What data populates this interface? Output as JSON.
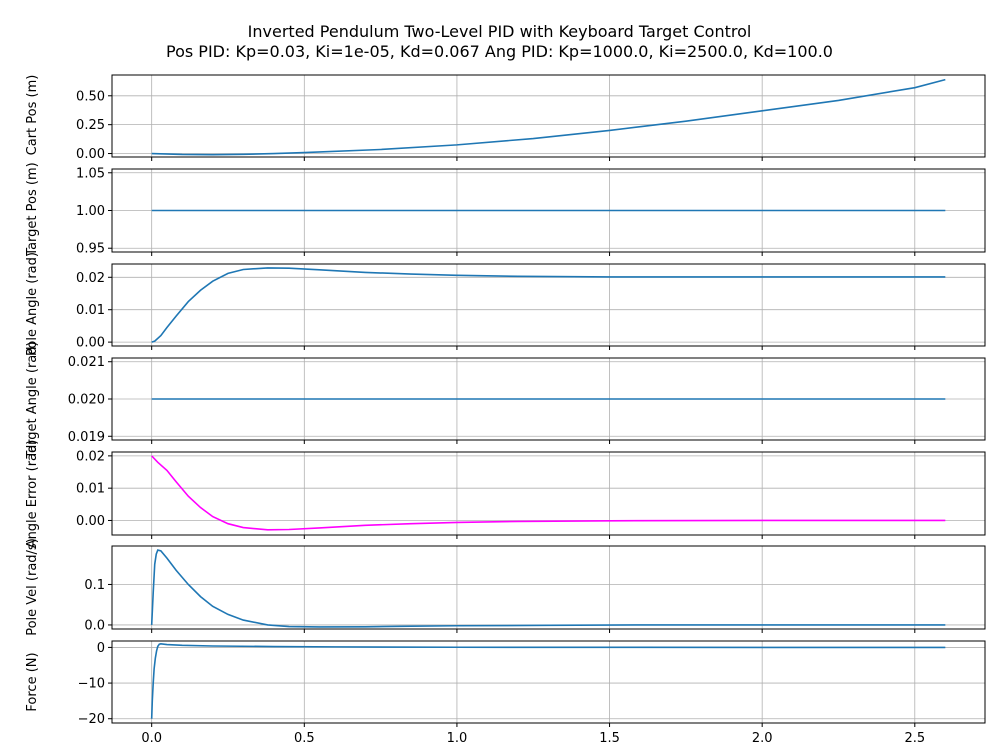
{
  "figure": {
    "title_line1": "Inverted Pendulum Two-Level PID with Keyboard Target Control",
    "title_line2": "Pos PID: Kp=0.03, Ki=1e-05, Kd=0.067     Ang PID: Kp=1000.0, Ki=2500.0, Kd=100.0"
  },
  "chart_data": [
    {
      "type": "line",
      "ylabel": "Cart Pos (m)",
      "xlim": [
        -0.13,
        2.73
      ],
      "ylim": [
        -0.03,
        0.68
      ],
      "yticks": [
        0.0,
        0.25,
        0.5
      ],
      "ytick_labels": [
        "0.00",
        "0.25",
        "0.50"
      ],
      "grid": true,
      "color": "#1f77b4",
      "x": [
        0,
        0.1,
        0.2,
        0.3,
        0.4,
        0.5,
        0.75,
        1.0,
        1.25,
        1.5,
        1.75,
        2.0,
        2.25,
        2.5,
        2.6
      ],
      "y": [
        0,
        -0.008,
        -0.01,
        -0.007,
        0.0,
        0.008,
        0.035,
        0.075,
        0.13,
        0.2,
        0.28,
        0.37,
        0.46,
        0.57,
        0.64
      ]
    },
    {
      "type": "line",
      "ylabel": "Target Pos (m)",
      "xlim": [
        -0.13,
        2.73
      ],
      "ylim": [
        0.945,
        1.055
      ],
      "yticks": [
        0.95,
        1.0,
        1.05
      ],
      "ytick_labels": [
        "0.95",
        "1.00",
        "1.05"
      ],
      "grid": true,
      "color": "#1f77b4",
      "x": [
        0,
        2.6
      ],
      "y": [
        1.0,
        1.0
      ]
    },
    {
      "type": "line",
      "ylabel": "Pole Angle (rad)",
      "xlim": [
        -0.13,
        2.73
      ],
      "ylim": [
        -0.0012,
        0.0241
      ],
      "yticks": [
        0.0,
        0.01,
        0.02
      ],
      "ytick_labels": [
        "0.00",
        "0.01",
        "0.02"
      ],
      "grid": true,
      "color": "#1f77b4",
      "x": [
        0,
        0.01,
        0.03,
        0.05,
        0.08,
        0.12,
        0.16,
        0.2,
        0.25,
        0.3,
        0.38,
        0.45,
        0.55,
        0.7,
        0.85,
        1.0,
        1.2,
        1.5,
        2.0,
        2.6
      ],
      "y": [
        0,
        0.0003,
        0.002,
        0.0045,
        0.008,
        0.0125,
        0.016,
        0.0188,
        0.0212,
        0.0224,
        0.0229,
        0.0228,
        0.0223,
        0.0215,
        0.021,
        0.0206,
        0.0203,
        0.0201,
        0.0201,
        0.0201
      ]
    },
    {
      "type": "line",
      "ylabel": "Target Angle (rad)",
      "xlim": [
        -0.13,
        2.73
      ],
      "ylim": [
        0.0189,
        0.0211
      ],
      "yticks": [
        0.019,
        0.02,
        0.021
      ],
      "ytick_labels": [
        "0.019",
        "0.020",
        "0.021"
      ],
      "grid": true,
      "color": "#1f77b4",
      "x": [
        0,
        2.6
      ],
      "y": [
        0.02,
        0.02
      ]
    },
    {
      "type": "line",
      "ylabel": "Angle Error (rad)",
      "xlim": [
        -0.13,
        2.73
      ],
      "ylim": [
        -0.0045,
        0.0212
      ],
      "yticks": [
        0.0,
        0.01,
        0.02
      ],
      "ytick_labels": [
        "0.00",
        "0.01",
        "0.02"
      ],
      "grid": true,
      "color": "#ff00ff",
      "x": [
        0,
        0.02,
        0.05,
        0.08,
        0.12,
        0.16,
        0.2,
        0.25,
        0.3,
        0.38,
        0.45,
        0.55,
        0.7,
        0.85,
        1.0,
        1.2,
        1.5,
        2.0,
        2.6
      ],
      "y": [
        0.02,
        0.018,
        0.0155,
        0.012,
        0.0075,
        0.004,
        0.0012,
        -0.001,
        -0.0022,
        -0.0029,
        -0.0028,
        -0.0023,
        -0.0015,
        -0.001,
        -0.0006,
        -0.0003,
        -0.0001,
        0.0,
        0.0
      ]
    },
    {
      "type": "line",
      "ylabel": "Pole Vel (rad/s)",
      "xlim": [
        -0.13,
        2.73
      ],
      "ylim": [
        -0.01,
        0.195
      ],
      "yticks": [
        0.0,
        0.1
      ],
      "ytick_labels": [
        "0.0",
        "0.1"
      ],
      "grid": true,
      "color": "#1f77b4",
      "x": [
        0,
        0.005,
        0.01,
        0.015,
        0.02,
        0.03,
        0.05,
        0.08,
        0.12,
        0.16,
        0.2,
        0.25,
        0.3,
        0.38,
        0.45,
        0.55,
        0.7,
        0.85,
        1.0,
        1.3,
        1.6,
        2.0,
        2.6
      ],
      "y": [
        0,
        0.08,
        0.15,
        0.175,
        0.185,
        0.183,
        0.165,
        0.135,
        0.1,
        0.07,
        0.046,
        0.026,
        0.012,
        0.0,
        -0.004,
        -0.005,
        -0.0045,
        -0.003,
        -0.002,
        -0.001,
        0.0,
        0.0,
        0.0
      ]
    },
    {
      "type": "line",
      "ylabel": "Force (N)",
      "xlim": [
        -0.13,
        2.73
      ],
      "ylim": [
        -21.2,
        1.8
      ],
      "yticks": [
        -20,
        -10,
        0
      ],
      "ytick_labels": [
        "−20",
        "−10",
        "0"
      ],
      "grid": true,
      "color": "#1f77b4",
      "x": [
        0,
        0.002,
        0.005,
        0.008,
        0.012,
        0.016,
        0.02,
        0.025,
        0.03,
        0.05,
        0.1,
        0.2,
        0.4,
        0.6,
        1.0,
        1.5,
        2.0,
        2.6
      ],
      "y": [
        -20,
        -15,
        -10,
        -6,
        -3,
        -1,
        0.3,
        0.9,
        1.0,
        0.8,
        0.6,
        0.4,
        0.25,
        0.15,
        0.05,
        0.02,
        0.0,
        0.0
      ]
    }
  ],
  "xaxis": {
    "ticks": [
      0.0,
      0.5,
      1.0,
      1.5,
      2.0,
      2.5
    ],
    "tick_labels": [
      "0.0",
      "0.5",
      "1.0",
      "1.5",
      "2.0",
      "2.5"
    ]
  }
}
